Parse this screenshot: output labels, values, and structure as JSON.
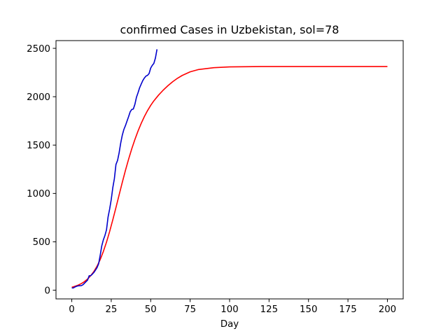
{
  "chart_data": {
    "type": "line",
    "title": "confirmed Cases in Uzbekistan, sol=78",
    "xlabel": "Day",
    "ylabel": "",
    "xlim": [
      -10,
      210
    ],
    "ylim": [
      -90,
      2580
    ],
    "xticks": [
      0,
      25,
      50,
      75,
      100,
      125,
      150,
      175,
      200
    ],
    "yticks": [
      0,
      500,
      1000,
      1500,
      2000,
      2500
    ],
    "grid": false,
    "legend": "none",
    "series": [
      {
        "color": "#ff0000",
        "x": [
          0,
          2,
          4,
          6,
          8,
          10,
          12,
          14,
          16,
          18,
          20,
          22,
          24,
          26,
          28,
          30,
          32,
          34,
          36,
          38,
          40,
          42,
          44,
          46,
          48,
          50,
          52,
          55,
          58,
          61,
          64,
          67,
          70,
          75,
          80,
          90,
          100,
          120,
          150,
          175,
          200
        ],
        "y": [
          30,
          40,
          52,
          68,
          88,
          115,
          150,
          193,
          248,
          316,
          400,
          497,
          607,
          728,
          855,
          985,
          1114,
          1238,
          1354,
          1461,
          1558,
          1646,
          1725,
          1795,
          1856,
          1910,
          1957,
          2017,
          2069,
          2115,
          2156,
          2191,
          2220,
          2257,
          2280,
          2300,
          2308,
          2312,
          2312,
          2312,
          2312
        ]
      },
      {
        "color": "#0000cc",
        "x": [
          0,
          1,
          2,
          3,
          4,
          5,
          6,
          7,
          8,
          9,
          10,
          11,
          12,
          13,
          14,
          15,
          16,
          17,
          18,
          19,
          20,
          21,
          22,
          23,
          24,
          25,
          26,
          27,
          28,
          29,
          30,
          31,
          32,
          33,
          34,
          35,
          36,
          37,
          38,
          39,
          40,
          41,
          42,
          43,
          44,
          45,
          46,
          47,
          48,
          49,
          50,
          51,
          52,
          53,
          54
        ],
        "y": [
          23,
          23,
          33,
          40,
          45,
          46,
          47,
          55,
          71,
          88,
          104,
          149,
          150,
          165,
          183,
          207,
          233,
          272,
          360,
          458,
          520,
          565,
          624,
          757,
          839,
          937,
          1060,
          1154,
          1300,
          1341,
          1420,
          1521,
          1602,
          1661,
          1701,
          1748,
          1794,
          1844,
          1868,
          1873,
          1922,
          1995,
          2042,
          2093,
          2131,
          2167,
          2193,
          2213,
          2221,
          2240,
          2296,
          2324,
          2344,
          2400,
          2490
        ]
      }
    ]
  }
}
